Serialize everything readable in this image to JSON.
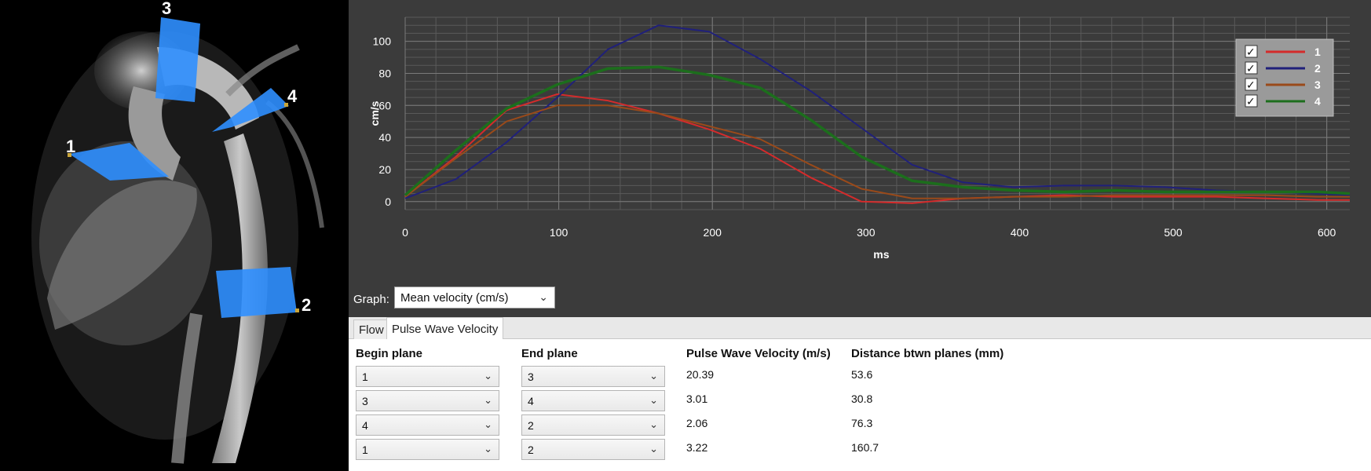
{
  "mri_plane_labels": [
    "3",
    "4",
    "1",
    "2"
  ],
  "chart_data": {
    "type": "line",
    "xlabel": "ms",
    "ylabel": "cm/s",
    "xlim": [
      0,
      615
    ],
    "ylim": [
      0,
      110
    ],
    "x_ticks": [
      0,
      100,
      200,
      300,
      400,
      500,
      600
    ],
    "y_ticks": [
      0,
      20,
      40,
      60,
      80,
      100
    ],
    "grid": true,
    "legend_position": "top-right",
    "series": [
      {
        "name": "1",
        "color": "#d42b2b",
        "checked": true,
        "x": [
          0,
          33,
          66,
          99,
          132,
          165,
          198,
          231,
          264,
          297,
          330,
          363,
          396,
          429,
          462,
          495,
          528,
          561,
          594,
          615
        ],
        "y": [
          3,
          28,
          57,
          67,
          63,
          55,
          45,
          33,
          15,
          0,
          -1,
          2,
          3,
          4,
          3,
          3,
          3,
          2,
          1,
          1
        ]
      },
      {
        "name": "2",
        "color": "#20207a",
        "checked": true,
        "x": [
          0,
          33,
          66,
          99,
          132,
          165,
          198,
          231,
          264,
          297,
          330,
          363,
          396,
          429,
          462,
          495,
          528,
          561,
          594,
          615
        ],
        "y": [
          2,
          14,
          37,
          65,
          95,
          110,
          106,
          89,
          69,
          46,
          23,
          12,
          9,
          10,
          10,
          9,
          7,
          6,
          5,
          4
        ]
      },
      {
        "name": "3",
        "color": "#9a4a1a",
        "checked": true,
        "x": [
          0,
          33,
          66,
          99,
          132,
          165,
          198,
          231,
          264,
          297,
          330,
          363,
          396,
          429,
          462,
          495,
          528,
          561,
          594,
          615
        ],
        "y": [
          3,
          27,
          50,
          60,
          60,
          55,
          47,
          39,
          23,
          8,
          2,
          2,
          3,
          3,
          4,
          4,
          4,
          4,
          3,
          3
        ]
      },
      {
        "name": "4",
        "color": "#1c6e1c",
        "checked": true,
        "x": [
          0,
          33,
          66,
          99,
          132,
          165,
          198,
          231,
          264,
          297,
          330,
          363,
          396,
          429,
          462,
          495,
          528,
          561,
          594,
          615
        ],
        "y": [
          4,
          32,
          58,
          73,
          83,
          84,
          79,
          71,
          51,
          28,
          13,
          9,
          7,
          6,
          7,
          6,
          6,
          6,
          6,
          5
        ]
      }
    ]
  },
  "graph_control": {
    "label": "Graph:",
    "selected": "Mean velocity (cm/s)"
  },
  "tabs": [
    {
      "label": "Flow",
      "active": false
    },
    {
      "label": "Pulse Wave Velocity",
      "active": true
    }
  ],
  "pwv_table": {
    "headers": [
      "Begin plane",
      "End plane",
      "Pulse Wave Velocity (m/s)",
      "Distance btwn planes (mm)"
    ],
    "rows": [
      {
        "begin": "1",
        "end": "3",
        "pwv": "20.39",
        "distance": "53.6"
      },
      {
        "begin": "3",
        "end": "4",
        "pwv": "3.01",
        "distance": "30.8"
      },
      {
        "begin": "4",
        "end": "2",
        "pwv": "2.06",
        "distance": "76.3"
      },
      {
        "begin": "1",
        "end": "2",
        "pwv": "3.22",
        "distance": "160.7"
      }
    ]
  }
}
